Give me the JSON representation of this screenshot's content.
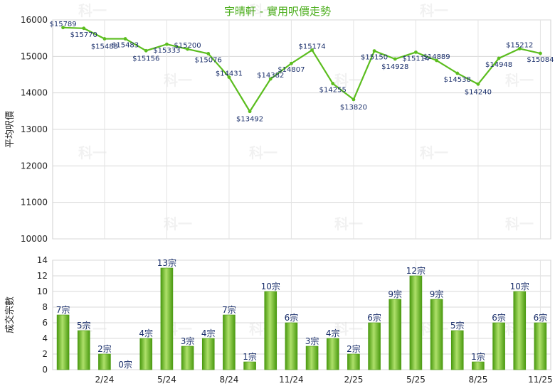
{
  "title": "宇晴軒 - 實用呎價走勢",
  "watermark": "科一",
  "colors": {
    "line": "#5bbd1e",
    "bar_light": "#aee06a",
    "bar_dark": "#4a9a10",
    "title": "#4cae1d",
    "label": "#1a2f6b"
  },
  "chart_data": [
    {
      "type": "line",
      "ylabel": "平均呎價",
      "ylim": [
        10000,
        16000
      ],
      "yticks": [
        10000,
        11000,
        12000,
        13000,
        14000,
        15000,
        16000
      ],
      "grid": true,
      "x_tick_labels": [
        "2/24",
        "5/24",
        "8/24",
        "11/24",
        "2/25",
        "5/25",
        "8/25",
        "11/25"
      ],
      "values": [
        15789,
        15770,
        15483,
        15483,
        15156,
        15333,
        15200,
        15076,
        14431,
        13492,
        14382,
        14807,
        15174,
        14255,
        13820,
        15150,
        14928,
        15114,
        14889,
        14538,
        14240,
        14948,
        15212,
        15084
      ],
      "data_labels": [
        "$15789",
        "$15770",
        "$15483",
        "$15483",
        "$15156",
        "$15333",
        "$15200",
        "$15076",
        "$14431",
        "$13492",
        "$14382",
        "$14807",
        "$15174",
        "$14255",
        "$13820",
        "$15150",
        "$14928",
        "$15114",
        "$14889",
        "$14538",
        "$14240",
        "$14948",
        "$15212",
        "$15084"
      ]
    },
    {
      "type": "bar",
      "ylabel": "成交宗數",
      "ylim": [
        0,
        14
      ],
      "yticks": [
        0,
        2,
        4,
        6,
        8,
        10,
        12,
        14
      ],
      "grid": true,
      "x_tick_labels": [
        "2/24",
        "5/24",
        "8/24",
        "11/24",
        "2/25",
        "5/25",
        "8/25",
        "11/25"
      ],
      "values": [
        7,
        5,
        2,
        0,
        4,
        13,
        3,
        4,
        7,
        1,
        10,
        6,
        3,
        4,
        2,
        6,
        9,
        12,
        9,
        5,
        1,
        6,
        10,
        6
      ],
      "data_labels": [
        "7宗",
        "5宗",
        "2宗",
        "0宗",
        "4宗",
        "13宗",
        "3宗",
        "4宗",
        "7宗",
        "1宗",
        "10宗",
        "6宗",
        "3宗",
        "4宗",
        "2宗",
        "6宗",
        "9宗",
        "12宗",
        "9宗",
        "5宗",
        "1宗",
        "6宗",
        "10宗",
        "6宗"
      ]
    }
  ]
}
